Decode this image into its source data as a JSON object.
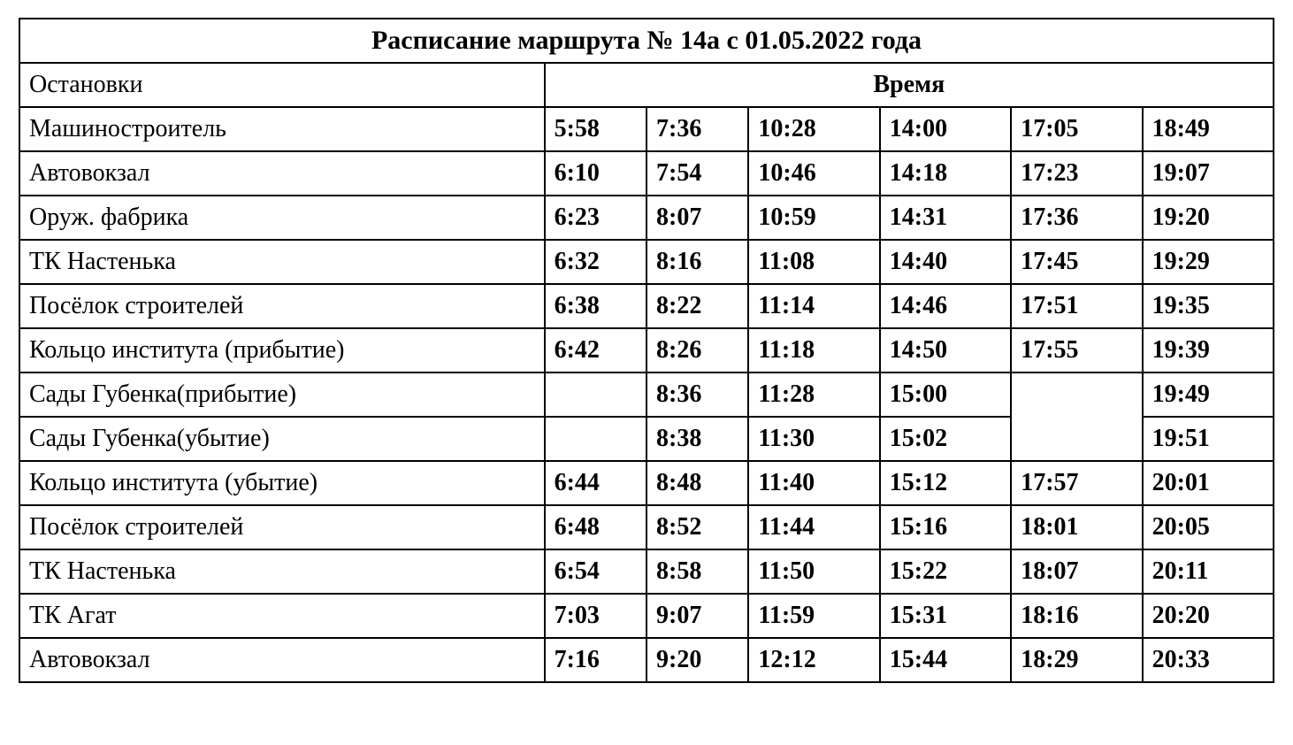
{
  "table": {
    "title": "Расписание маршрута № 14а с 01.05.2022 года",
    "header_stops": "Остановки",
    "header_time": "Время",
    "layout": {
      "border_color": "#000000",
      "border_width": 2,
      "background_color": "#ffffff",
      "text_color": "#000000",
      "title_fontsize": 30,
      "cell_fontsize": 28,
      "font_family": "Times New Roman",
      "stops_col_width_pct": 36,
      "time_col_widths_pct": [
        7,
        7,
        9,
        9,
        9,
        9
      ]
    },
    "rows": [
      {
        "stop": "Машиностроитель",
        "t1": "5:58",
        "t2": "7:36",
        "t3": "10:28",
        "t4": "14:00",
        "t5": "17:05",
        "t6": "18:49",
        "merge5": false
      },
      {
        "stop": "Автовокзал",
        "t1": "6:10",
        "t2": "7:54",
        "t3": "10:46",
        "t4": "14:18",
        "t5": "17:23",
        "t6": "19:07",
        "merge5": false
      },
      {
        "stop": "Оруж. фабрика",
        "t1": "6:23",
        "t2": "8:07",
        "t3": "10:59",
        "t4": "14:31",
        "t5": "17:36",
        "t6": "19:20",
        "merge5": false
      },
      {
        "stop": "ТК Настенька",
        "t1": "6:32",
        "t2": "8:16",
        "t3": "11:08",
        "t4": "14:40",
        "t5": "17:45",
        "t6": "19:29",
        "merge5": false
      },
      {
        "stop": "Посёлок строителей",
        "t1": "6:38",
        "t2": "8:22",
        "t3": "11:14",
        "t4": "14:46",
        "t5": "17:51",
        "t6": "19:35",
        "merge5": false
      },
      {
        "stop": "Кольцо института (прибытие)",
        "t1": "6:42",
        "t2": "8:26",
        "t3": "11:18",
        "t4": "14:50",
        "t5": "17:55",
        "t6": "19:39",
        "merge5": false
      },
      {
        "stop": "Сады Губенка(прибытие)",
        "t1": "",
        "t2": "8:36",
        "t3": "11:28",
        "t4": "15:00",
        "t5": "",
        "t6": "19:49",
        "merge5": "start"
      },
      {
        "stop": "Сады Губенка(убытие)",
        "t1": "",
        "t2": "8:38",
        "t3": "11:30",
        "t4": "15:02",
        "t5": "",
        "t6": "19:51",
        "merge5": "skip"
      },
      {
        "stop": "Кольцо института (убытие)",
        "t1": "6:44",
        "t2": "8:48",
        "t3": "11:40",
        "t4": "15:12",
        "t5": "17:57",
        "t6": "20:01",
        "merge5": false
      },
      {
        "stop": "Посёлок строителей",
        "t1": "6:48",
        "t2": "8:52",
        "t3": "11:44",
        "t4": "15:16",
        "t5": "18:01",
        "t6": "20:05",
        "merge5": false
      },
      {
        "stop": "ТК Настенька",
        "t1": "6:54",
        "t2": "8:58",
        "t3": "11:50",
        "t4": "15:22",
        "t5": "18:07",
        "t6": "20:11",
        "merge5": false
      },
      {
        "stop": "ТК Агат",
        "t1": "7:03",
        "t2": "9:07",
        "t3": "11:59",
        "t4": "15:31",
        "t5": "18:16",
        "t6": "20:20",
        "merge5": false
      },
      {
        "stop": "Автовокзал",
        "t1": "7:16",
        "t2": "9:20",
        "t3": "12:12",
        "t4": "15:44",
        "t5": "18:29",
        "t6": "20:33",
        "merge5": false
      }
    ]
  }
}
